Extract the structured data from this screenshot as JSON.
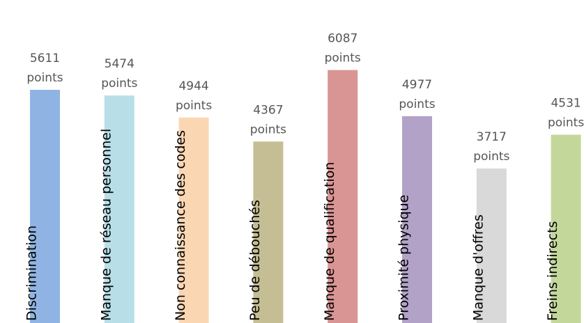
{
  "chart_data": {
    "type": "bar",
    "categories": [
      "Discrimination",
      "Manque de réseau personnel",
      "Non connaissance des codes",
      "Peu de débouchés",
      "Manque de qualification",
      "Proximité physique",
      "Manque d'offres",
      "Freins indirects"
    ],
    "values": [
      5611,
      5474,
      4944,
      4367,
      6087,
      4977,
      3717,
      4531
    ],
    "value_unit": "points",
    "colors": [
      "#8fb4e3",
      "#b8dfe8",
      "#fbd6b3",
      "#c5be94",
      "#d99593",
      "#b3a2c8",
      "#d9d9d9",
      "#c4d79b"
    ],
    "category_label_placement": "vertical-inside-bottom",
    "value_label_placement": "above-bar",
    "grid": false,
    "legend": "none",
    "ylim": [
      0,
      7000
    ]
  }
}
